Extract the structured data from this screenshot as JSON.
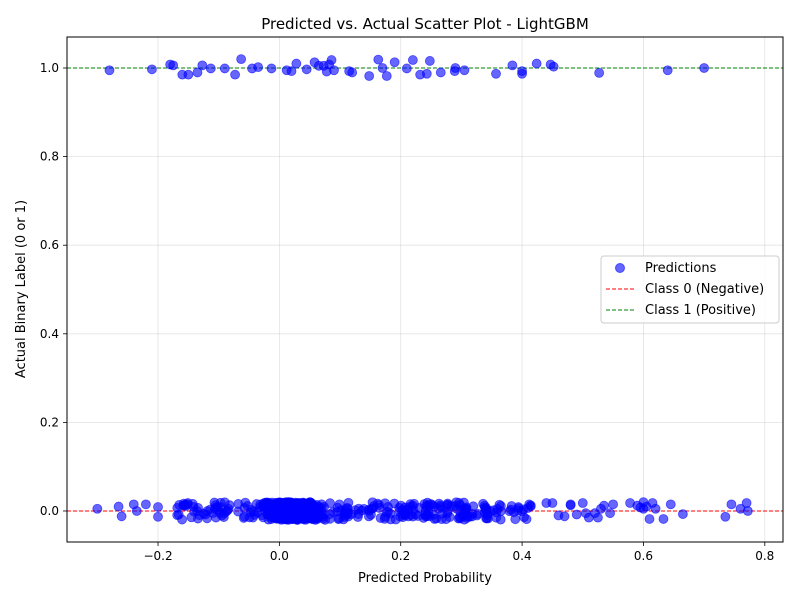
{
  "chart_data": {
    "type": "scatter",
    "title": "Predicted vs. Actual Scatter Plot - LightGBM",
    "xlabel": "Predicted Probability",
    "ylabel": "Actual Binary Label (0 or 1)",
    "xlim": [
      -0.35,
      0.83
    ],
    "ylim": [
      -0.07,
      1.07
    ],
    "xticks": [
      -0.2,
      0.0,
      0.2,
      0.4,
      0.6,
      0.8
    ],
    "yticks": [
      0.0,
      0.2,
      0.4,
      0.6,
      0.8,
      1.0
    ],
    "xtick_labels": [
      "−0.2",
      "0.0",
      "0.2",
      "0.4",
      "0.6",
      "0.8"
    ],
    "ytick_labels": [
      "0.0",
      "0.2",
      "0.4",
      "0.6",
      "0.8",
      "1.0"
    ],
    "grid": true,
    "legend_position": "center-right",
    "series": [
      {
        "name": "Predictions",
        "color": "#0000ff",
        "marker": "circle",
        "points_class1_x": [
          -0.28,
          -0.21,
          -0.18,
          -0.175,
          -0.16,
          -0.15,
          -0.135,
          -0.127,
          -0.113,
          -0.09,
          -0.073,
          -0.063,
          -0.045,
          -0.035,
          -0.013,
          0.012,
          0.02,
          0.028,
          0.045,
          0.058,
          0.065,
          0.073,
          0.078,
          0.082,
          0.086,
          0.09,
          0.115,
          0.12,
          0.148,
          0.163,
          0.17,
          0.177,
          0.19,
          0.21,
          0.22,
          0.232,
          0.243,
          0.248,
          0.266,
          0.289,
          0.29,
          0.305,
          0.357,
          0.384,
          0.4,
          0.4,
          0.424,
          0.447,
          0.452,
          0.527,
          0.64,
          0.7
        ],
        "points_class1_y": [
          0.995,
          0.997,
          1.008,
          1.006,
          0.985,
          0.985,
          0.99,
          1.006,
          0.999,
          0.999,
          0.985,
          1.02,
          0.999,
          1.002,
          0.999,
          0.995,
          0.993,
          1.01,
          0.997,
          1.013,
          1.005,
          1.005,
          0.992,
          1.008,
          1.018,
          0.995,
          0.993,
          0.99,
          0.982,
          1.019,
          1.0,
          0.982,
          1.013,
          0.999,
          1.018,
          0.985,
          0.987,
          1.016,
          0.99,
          0.993,
          1.0,
          0.995,
          0.987,
          1.006,
          0.993,
          0.987,
          1.01,
          1.008,
          1.003,
          0.989,
          0.995,
          1.0
        ],
        "class0_tail_x": [
          -0.3,
          -0.265,
          -0.26,
          -0.24,
          -0.235,
          -0.22,
          -0.2,
          -0.2,
          0.44,
          0.45,
          0.46,
          0.47,
          0.48,
          0.48,
          0.49,
          0.5,
          0.505,
          0.51,
          0.52,
          0.525,
          0.53,
          0.535,
          0.545,
          0.55,
          0.578,
          0.59,
          0.595,
          0.6,
          0.6,
          0.605,
          0.61,
          0.615,
          0.62,
          0.633,
          0.645,
          0.665,
          0.735,
          0.745,
          0.76,
          0.77,
          0.772
        ],
        "class0_tail_y": [
          0.005,
          0.01,
          -0.012,
          0.015,
          0.0,
          0.015,
          0.009,
          -0.013,
          0.018,
          0.018,
          -0.01,
          -0.012,
          0.015,
          0.013,
          -0.008,
          0.018,
          -0.005,
          -0.015,
          -0.005,
          -0.015,
          0.005,
          0.012,
          -0.005,
          0.015,
          0.018,
          0.012,
          0.008,
          0.02,
          0.005,
          0.01,
          -0.018,
          0.018,
          0.005,
          -0.018,
          0.015,
          -0.007,
          -0.013,
          0.015,
          0.005,
          0.018,
          0.0
        ]
      }
    ],
    "reference_lines": [
      {
        "name": "Class 0 (Negative)",
        "y": 0,
        "color": "#ff0000",
        "style": "dashed"
      },
      {
        "name": "Class 1 (Positive)",
        "y": 1,
        "color": "#008000",
        "style": "dashed"
      }
    ]
  }
}
